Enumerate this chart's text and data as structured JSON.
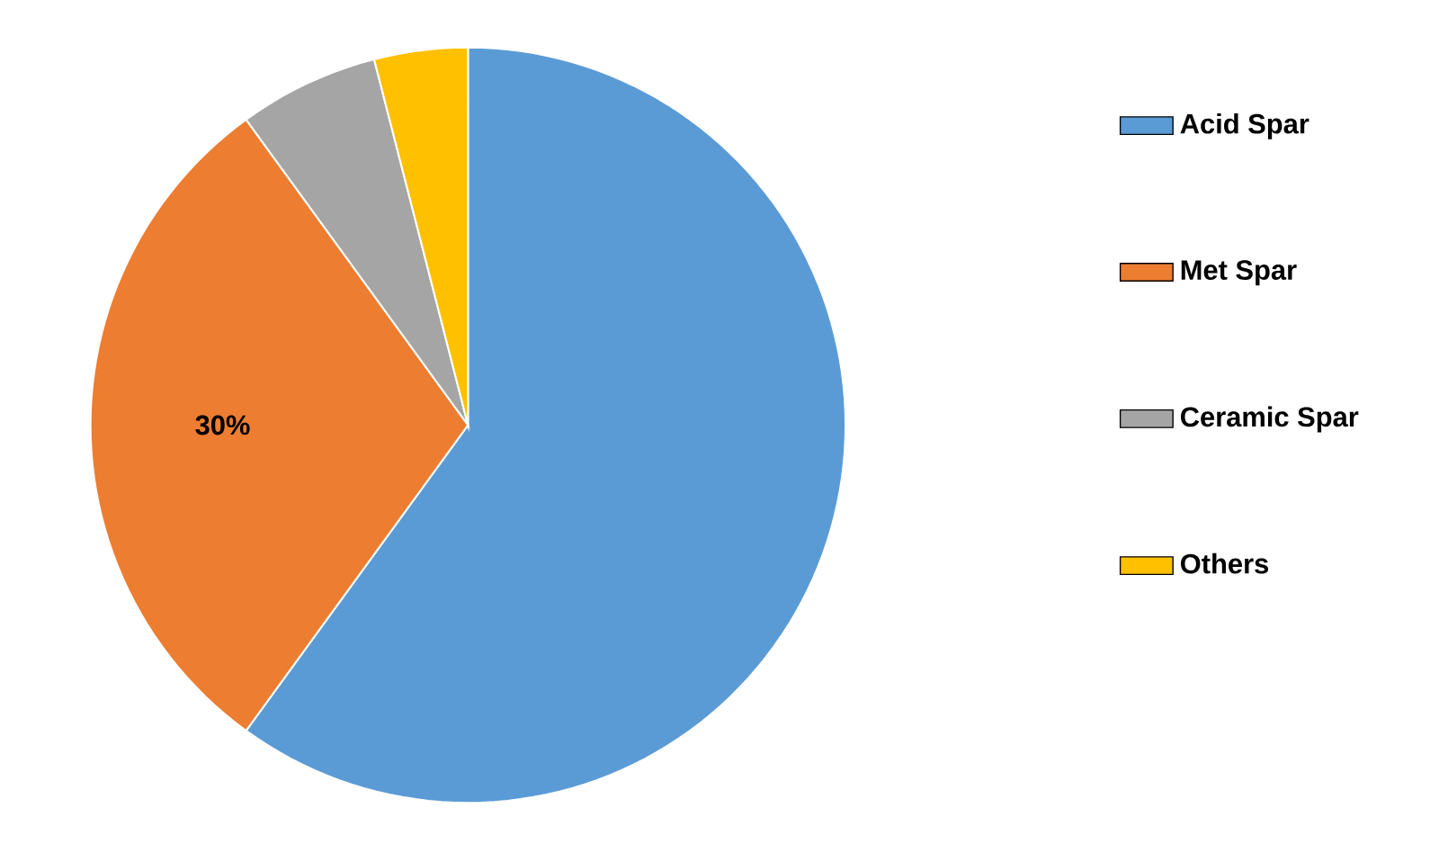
{
  "chart_data": {
    "type": "pie",
    "categories": [
      "Acid Spar",
      "Met Spar",
      "Ceramic Spar",
      "Others"
    ],
    "values": [
      60,
      30,
      6,
      4
    ],
    "colors": [
      "#5b9bd5",
      "#ed7d31",
      "#a5a5a5",
      "#ffc000"
    ],
    "value_labels": [
      null,
      "30%",
      null,
      null
    ],
    "legend": "right"
  }
}
